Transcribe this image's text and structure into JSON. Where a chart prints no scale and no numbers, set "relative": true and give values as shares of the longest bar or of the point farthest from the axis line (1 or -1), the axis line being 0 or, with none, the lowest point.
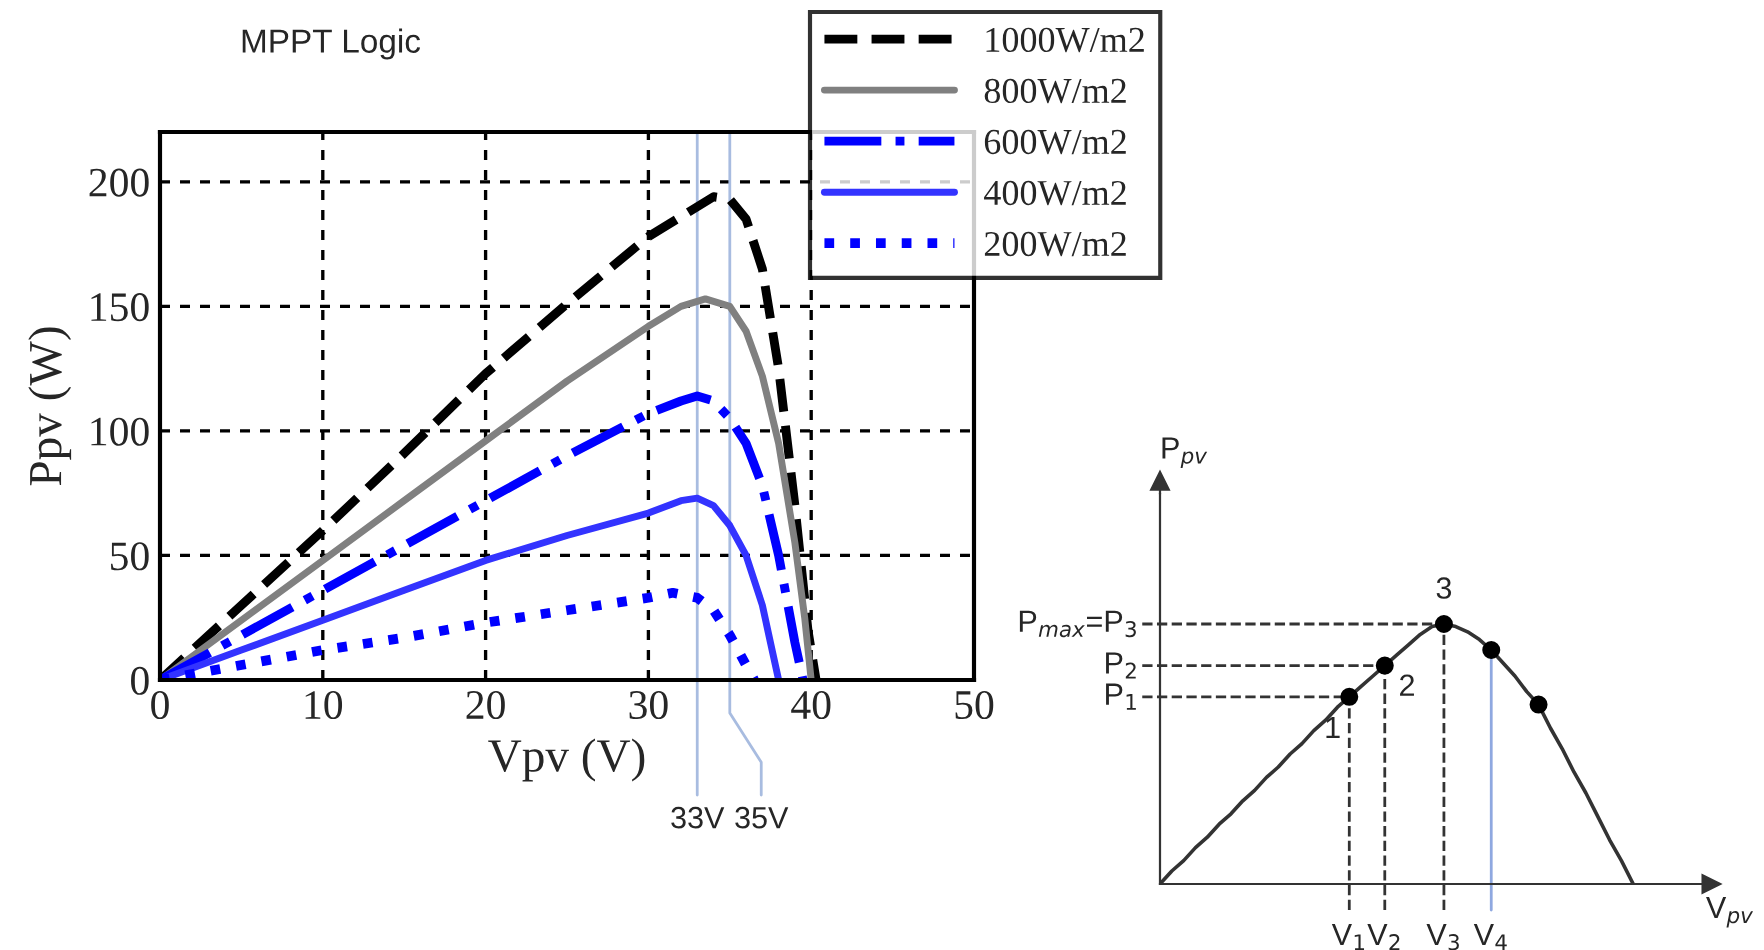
{
  "chart_data": [
    {
      "type": "line",
      "title": "MPPT Logic",
      "xlabel": "Vpv (V)",
      "ylabel": "Ppv (W)",
      "xlim": [
        0,
        50
      ],
      "ylim": [
        0,
        220
      ],
      "xticks": [
        0,
        10,
        20,
        30,
        40,
        50
      ],
      "yticks": [
        0,
        50,
        100,
        150,
        200
      ],
      "grid": true,
      "legend": "top right",
      "series": [
        {
          "name": "1000W/m2",
          "color": "#000000",
          "line_style": "dashed",
          "x": [
            0,
            5,
            10,
            15,
            20,
            25,
            30,
            33,
            34,
            35,
            36,
            37,
            38,
            39,
            39.8,
            40.3
          ],
          "values": [
            0,
            30,
            60,
            91,
            123,
            151,
            178,
            190,
            194,
            193,
            185,
            165,
            125,
            70,
            20,
            0
          ]
        },
        {
          "name": "800W/m2",
          "color": "#808080",
          "line_style": "solid",
          "x": [
            0,
            5,
            10,
            15,
            20,
            25,
            30,
            32,
            33.5,
            35,
            36,
            37,
            38,
            39,
            39.6,
            40
          ],
          "values": [
            0,
            24,
            48,
            72,
            96,
            120,
            142,
            150,
            153,
            150,
            140,
            122,
            95,
            55,
            25,
            0
          ]
        },
        {
          "name": "600W/m2",
          "color": "#0000ff",
          "line_style": "dashdot",
          "x": [
            0,
            5,
            10,
            15,
            20,
            25,
            30,
            32,
            33,
            34,
            35,
            36,
            37,
            38,
            39,
            39.5
          ],
          "values": [
            0,
            18,
            36,
            54,
            72,
            90,
            107,
            112,
            114,
            112,
            105,
            95,
            78,
            50,
            15,
            0
          ]
        },
        {
          "name": "400W/m2",
          "color": "#3333ff",
          "line_style": "solid",
          "x": [
            0,
            5,
            10,
            15,
            20,
            25,
            30,
            32,
            33,
            34,
            35,
            36,
            37,
            37.5,
            38
          ],
          "values": [
            0,
            12,
            24,
            36,
            48,
            58,
            67,
            72,
            73,
            70,
            62,
            50,
            30,
            15,
            0
          ]
        },
        {
          "name": "200W/m2",
          "color": "#0000ff",
          "line_style": "dotted",
          "x": [
            0,
            5,
            10,
            15,
            20,
            25,
            30,
            31.5,
            33,
            34,
            35,
            36,
            36.5
          ],
          "values": [
            0,
            6,
            12,
            17,
            23,
            28,
            33,
            35,
            33,
            28,
            18,
            6,
            0
          ]
        }
      ],
      "ref_lines": [
        {
          "axis": "x",
          "value": 33,
          "label": "33V",
          "color": "#a8bce0"
        },
        {
          "axis": "x",
          "value": 35,
          "label": "35V",
          "color": "#a8bce0"
        }
      ]
    },
    {
      "type": "line",
      "relative": true,
      "xlabel": "V$_{pv}$",
      "ylabel": "P$_{pv}$",
      "categories": [
        null,
        null,
        null,
        null,
        null,
        null,
        null,
        null,
        null,
        null,
        null,
        null,
        null,
        null,
        null,
        null,
        "V$_{1}$",
        null,
        null,
        "V$_{2}$",
        null,
        null,
        null,
        null,
        "V$_{3}$",
        null,
        null,
        null,
        "V$_{4}$",
        null,
        null,
        null,
        null,
        null,
        null,
        null,
        null,
        null,
        null,
        null,
        null
      ],
      "series": [
        {
          "color": "#333333",
          "values": [
            0,
            0.05,
            0.09,
            0.14,
            0.18,
            0.23,
            0.27,
            0.32,
            0.36,
            0.41,
            0.45,
            0.5,
            0.54,
            0.59,
            0.63,
            0.68,
            0.72,
            0.76,
            0.8,
            0.84,
            0.88,
            0.92,
            0.96,
            0.99,
            1.0,
            0.99,
            0.97,
            0.94,
            0.9,
            0.85,
            0.8,
            0.74,
            0.69,
            0.6,
            0.52,
            0.43,
            0.35,
            0.26,
            0.17,
            0.09,
            0
          ]
        },
        {
          "type": "scatter",
          "color": "#000000",
          "marker": "circle",
          "values": [
            null,
            null,
            null,
            null,
            null,
            null,
            null,
            null,
            null,
            null,
            null,
            null,
            null,
            null,
            null,
            null,
            0.72,
            null,
            null,
            0.84,
            null,
            null,
            null,
            null,
            1.0,
            null,
            null,
            null,
            0.9,
            null,
            null,
            null,
            0.69,
            null,
            null,
            null,
            null,
            null,
            null,
            null,
            null
          ]
        }
      ],
      "ref_lines": [
        {
          "axis": "x",
          "value": "V$_{1}$",
          "color": "#333333",
          "line_style": "dashed"
        },
        {
          "axis": "x",
          "value": "V$_{2}$",
          "color": "#333333",
          "line_style": "dashed"
        },
        {
          "axis": "x",
          "value": "V$_{3}$",
          "color": "#333333",
          "line_style": "dashed"
        },
        {
          "axis": "x",
          "value": "V$_{4}$",
          "color": "#8fa8e0",
          "line_style": "solid"
        },
        {
          "axis": "y",
          "value": 0.72,
          "label": "P$_{1}$",
          "color": "#333333",
          "line_style": "dashed"
        },
        {
          "axis": "y",
          "value": 0.84,
          "label": "P$_{2}$",
          "color": "#333333",
          "line_style": "dashed"
        },
        {
          "axis": "y",
          "value": 1.0,
          "label": "P$_{max}$=P$_{3}$",
          "color": "#333333",
          "line_style": "dashed"
        }
      ],
      "annotations": [
        {
          "text": "1",
          "x": "V$_{1}$",
          "y": 0.72
        },
        {
          "text": "2",
          "x": "V$_{2}$",
          "y": 0.84
        },
        {
          "text": "3",
          "x": "V$_{3}$",
          "y": 1.0
        }
      ]
    }
  ]
}
